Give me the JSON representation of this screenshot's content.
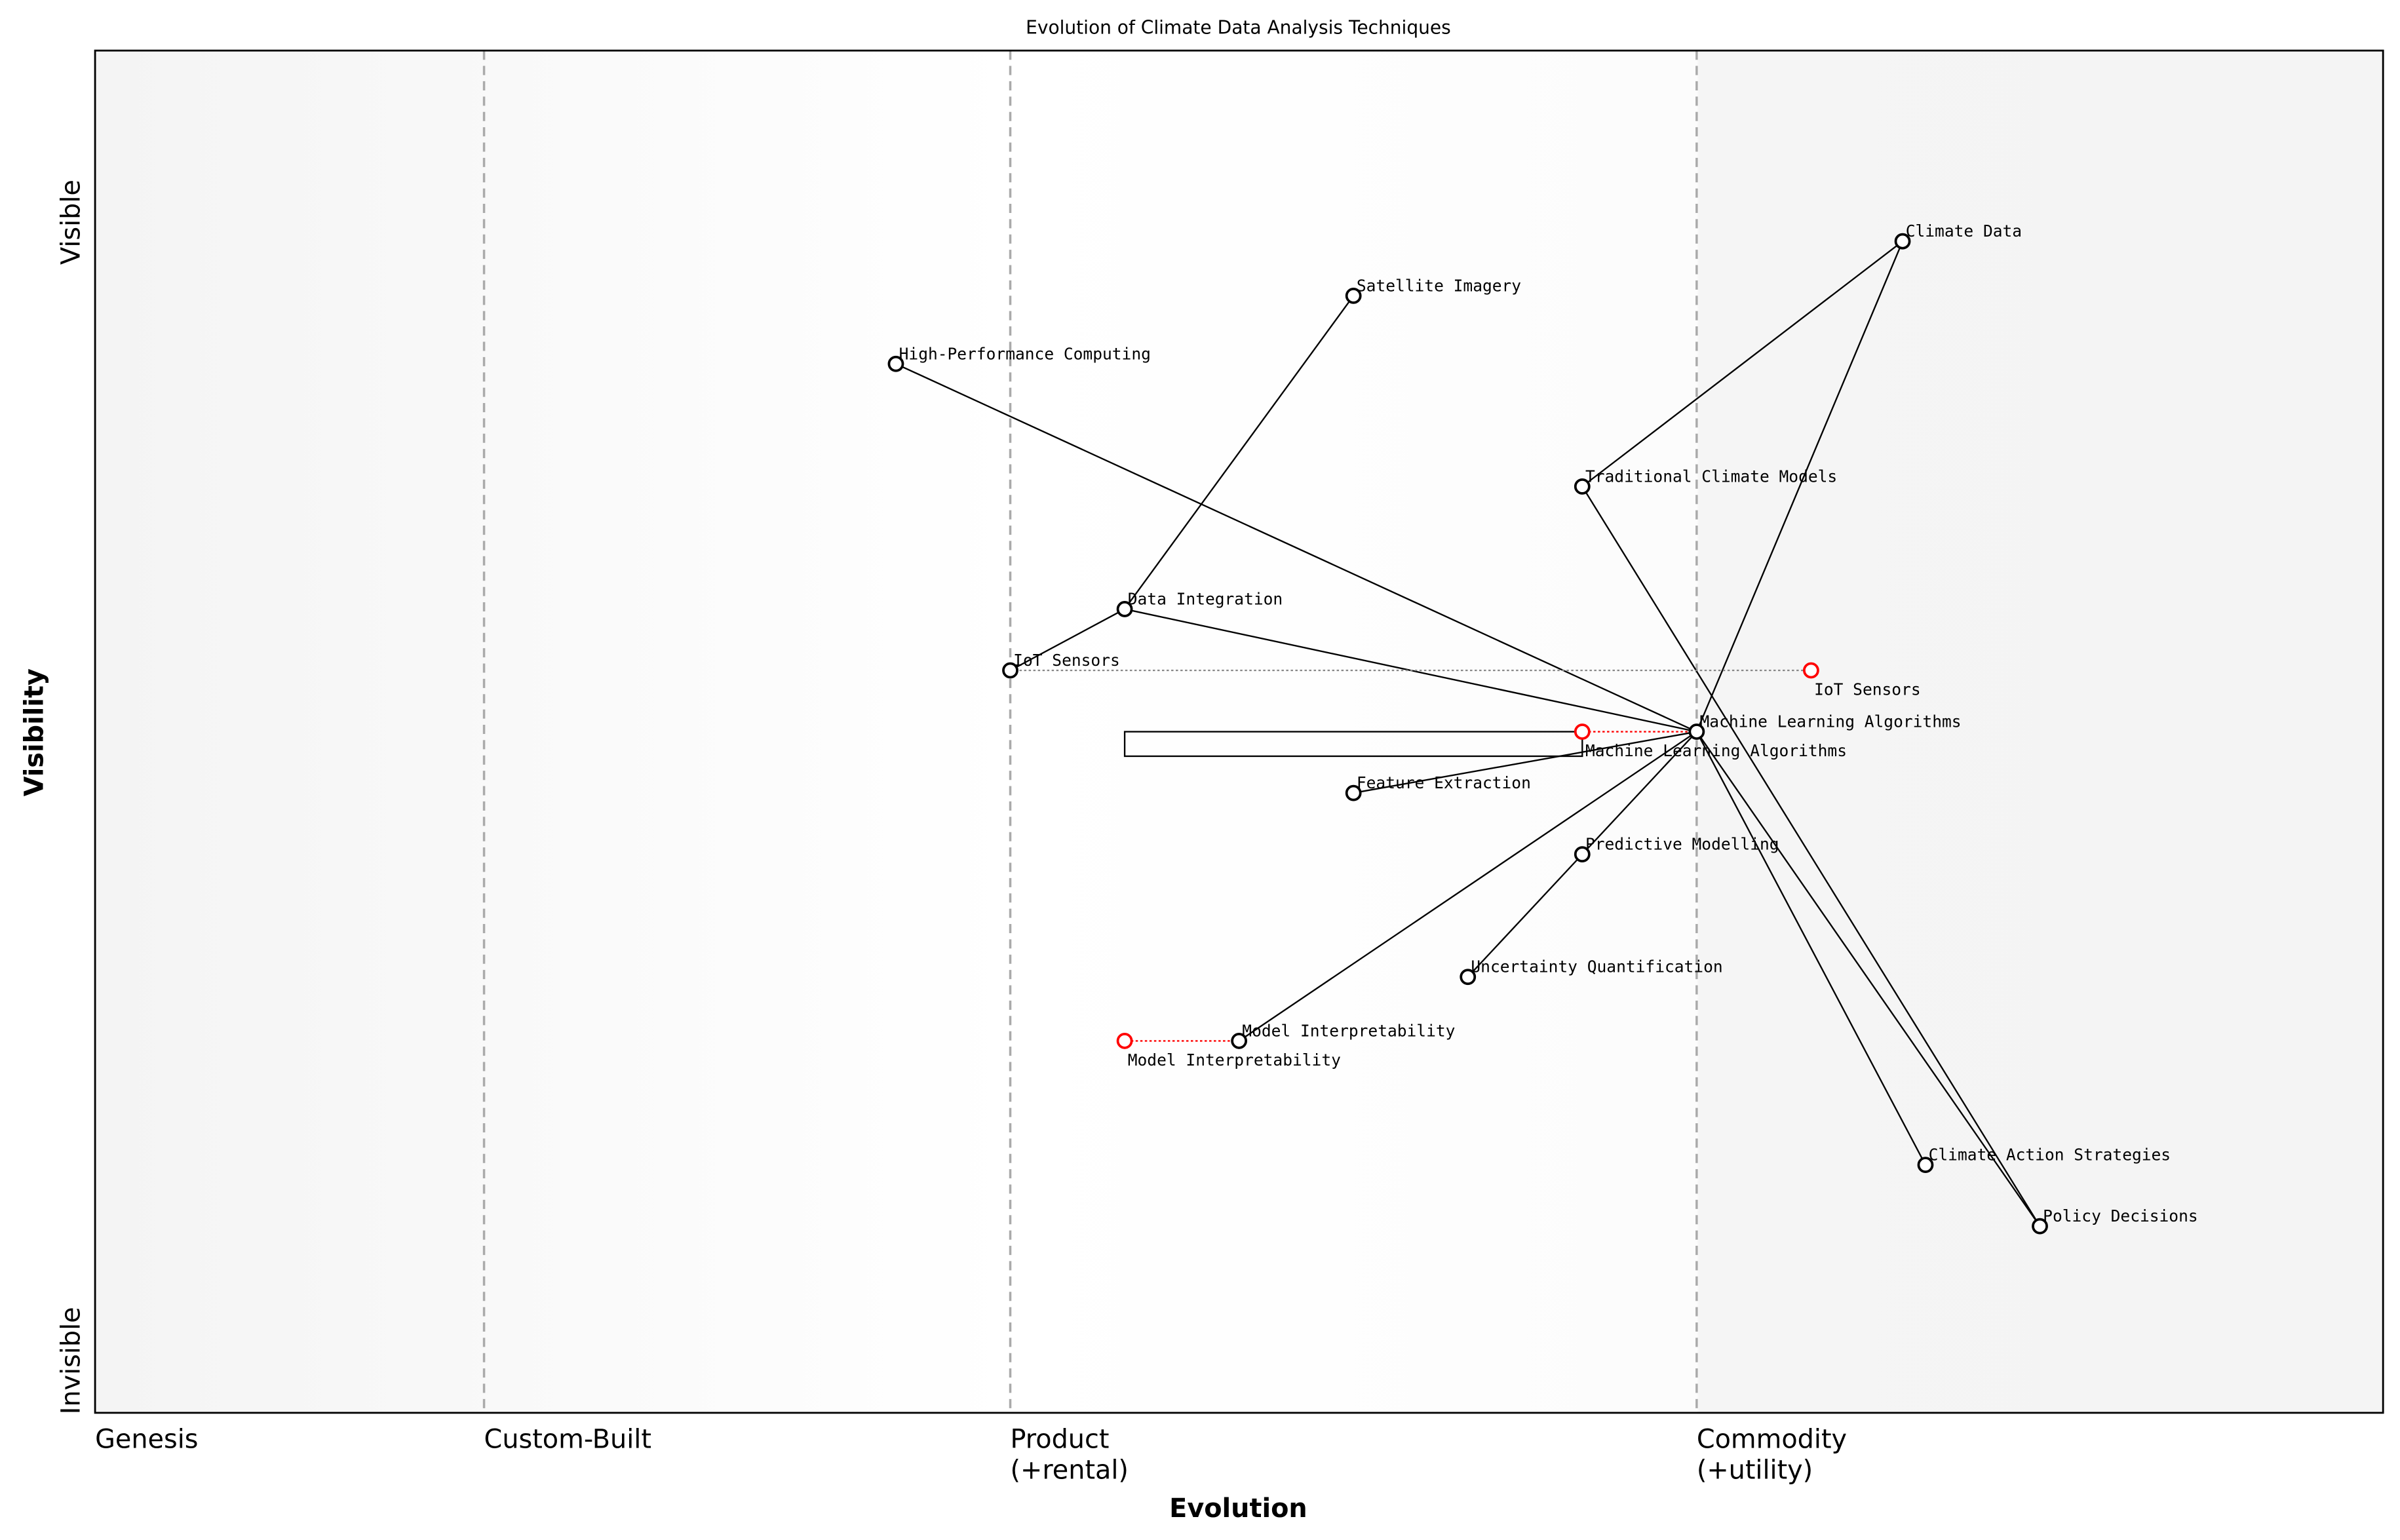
{
  "chart_data": {
    "type": "scatter",
    "subtype": "wardley-map",
    "title": "Evolution of Climate Data Analysis Techniques",
    "xlabel": "Evolution",
    "ylabel": "Visibility",
    "xlim": [
      0,
      1
    ],
    "ylim": [
      0,
      1
    ],
    "grid": false,
    "stages": [
      {
        "label": "Genesis",
        "x": 0.0
      },
      {
        "label": "Custom-Built",
        "x": 0.17
      },
      {
        "label": "Product\n(+rental)",
        "x": 0.4
      },
      {
        "label": "Commodity\n(+utility)",
        "x": 0.7
      }
    ],
    "y_tick_labels": {
      "top": "Visible",
      "bottom": "Invisible"
    },
    "components": [
      {
        "id": "climate_data",
        "name": "Climate Data",
        "x": 0.79,
        "y": 0.86
      },
      {
        "id": "satellite",
        "name": "Satellite Imagery",
        "x": 0.55,
        "y": 0.82
      },
      {
        "id": "hpc",
        "name": "High-Performance Computing",
        "x": 0.35,
        "y": 0.77
      },
      {
        "id": "tcm",
        "name": "Traditional Climate Models",
        "x": 0.65,
        "y": 0.68
      },
      {
        "id": "di",
        "name": "Data Integration",
        "x": 0.45,
        "y": 0.59
      },
      {
        "id": "iot",
        "name": "IoT Sensors",
        "x": 0.4,
        "y": 0.545
      },
      {
        "id": "ml",
        "name": "Machine Learning Algorithms",
        "x": 0.7,
        "y": 0.5
      },
      {
        "id": "fe",
        "name": "Feature Extraction",
        "x": 0.55,
        "y": 0.455
      },
      {
        "id": "pm",
        "name": "Predictive Modelling",
        "x": 0.65,
        "y": 0.41
      },
      {
        "id": "uq",
        "name": "Uncertainty Quantification",
        "x": 0.6,
        "y": 0.32
      },
      {
        "id": "mi",
        "name": "Model Interpretability",
        "x": 0.5,
        "y": 0.273
      },
      {
        "id": "cas",
        "name": "Climate Action Strategies",
        "x": 0.8,
        "y": 0.182
      },
      {
        "id": "pd",
        "name": "Policy Decisions",
        "x": 0.85,
        "y": 0.137
      }
    ],
    "evolved": [
      {
        "from": "iot",
        "name": "IoT Sensors",
        "x": 0.75,
        "y": 0.545,
        "line_color": "#888888"
      },
      {
        "from": "ml",
        "name": "Machine Learning Algorithms",
        "x": 0.65,
        "y": 0.5,
        "line_color": "#ff0000"
      },
      {
        "from": "mi",
        "name": "Model Interpretability",
        "x": 0.45,
        "y": 0.273,
        "line_color": "#ff0000"
      }
    ],
    "links": [
      [
        "climate_data",
        "tcm"
      ],
      [
        "climate_data",
        "ml"
      ],
      [
        "satellite",
        "di"
      ],
      [
        "hpc",
        "ml"
      ],
      [
        "tcm",
        "pd"
      ],
      [
        "di",
        "iot"
      ],
      [
        "di",
        "ml"
      ],
      [
        "ml",
        "fe"
      ],
      [
        "ml",
        "pm"
      ],
      [
        "ml",
        "mi"
      ],
      [
        "ml",
        "cas"
      ],
      [
        "ml",
        "pd"
      ],
      [
        "pm",
        "uq"
      ]
    ],
    "pipeline": {
      "x_start": 0.45,
      "x_end": 0.65,
      "y": 0.5
    },
    "colors": {
      "node": "#000000",
      "evolved_node": "#ff0000",
      "stage_line": "#aaaaaa"
    }
  }
}
